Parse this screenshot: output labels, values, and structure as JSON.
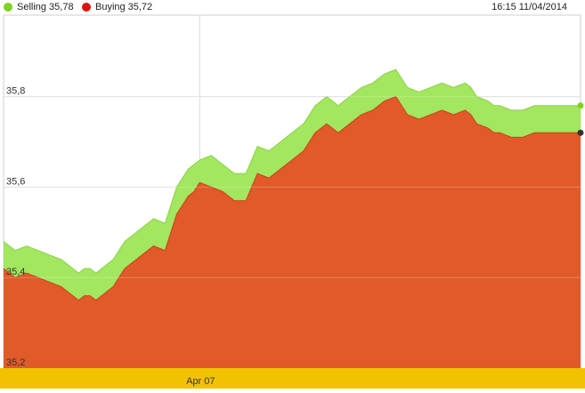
{
  "legend": {
    "selling": {
      "label": "Selling",
      "value": "35,78",
      "color": "#7ed321"
    },
    "buying": {
      "label": "Buying",
      "value": "35,72",
      "color": "#dd1111"
    }
  },
  "timestamp": "16:15 11/04/2014",
  "chart_data": {
    "type": "area",
    "title": "",
    "xlabel": "",
    "ylabel": "",
    "ylim": [
      35.2,
      35.98
    ],
    "y_ticks": [
      {
        "value": 35.2,
        "label": "35,2"
      },
      {
        "value": 35.4,
        "label": "35,4"
      },
      {
        "value": 35.6,
        "label": "35,6"
      },
      {
        "value": 35.8,
        "label": "35,8"
      }
    ],
    "x_ticks": [
      {
        "x": 34,
        "label": "Apr 07"
      }
    ],
    "grid": true,
    "colors": {
      "selling_fill": "#a3e65f",
      "buying_fill": "#e05a2a",
      "xaxis_band": "#f2c200",
      "grid": "#d9d9d9"
    },
    "x": [
      0,
      2,
      4,
      6,
      8,
      10,
      11,
      12,
      13,
      14,
      15,
      16,
      17,
      18,
      19,
      20,
      21,
      22,
      24,
      26,
      28,
      30,
      31,
      32,
      33,
      34,
      36,
      38,
      40,
      42,
      44,
      46,
      47,
      48,
      49,
      50,
      52,
      54,
      56,
      58,
      59,
      60,
      62,
      64,
      66,
      68,
      70,
      72,
      74,
      76,
      78,
      80,
      81,
      82,
      84,
      85,
      86,
      88,
      90,
      92,
      94,
      96,
      98,
      100
    ],
    "series": [
      {
        "name": "Selling",
        "values": [
          35.48,
          35.46,
          35.47,
          35.46,
          35.45,
          35.44,
          35.43,
          35.42,
          35.41,
          35.42,
          35.42,
          35.41,
          35.42,
          35.43,
          35.44,
          35.46,
          35.48,
          35.49,
          35.51,
          35.53,
          35.52,
          35.6,
          35.62,
          35.64,
          35.65,
          35.66,
          35.67,
          35.65,
          35.63,
          35.63,
          35.69,
          35.68,
          35.69,
          35.7,
          35.71,
          35.72,
          35.74,
          35.78,
          35.8,
          35.78,
          35.79,
          35.8,
          35.82,
          35.83,
          35.85,
          35.86,
          35.82,
          35.81,
          35.82,
          35.83,
          35.82,
          35.83,
          35.82,
          35.8,
          35.79,
          35.78,
          35.78,
          35.77,
          35.77,
          35.78,
          35.78,
          35.78,
          35.78,
          35.78
        ]
      },
      {
        "name": "Buying",
        "values": [
          35.42,
          35.4,
          35.41,
          35.4,
          35.39,
          35.38,
          35.37,
          35.36,
          35.35,
          35.36,
          35.36,
          35.35,
          35.36,
          35.37,
          35.38,
          35.4,
          35.42,
          35.43,
          35.45,
          35.47,
          35.46,
          35.54,
          35.56,
          35.58,
          35.59,
          35.61,
          35.6,
          35.59,
          35.57,
          35.57,
          35.63,
          35.62,
          35.63,
          35.64,
          35.65,
          35.66,
          35.68,
          35.72,
          35.74,
          35.72,
          35.73,
          35.74,
          35.76,
          35.77,
          35.79,
          35.8,
          35.76,
          35.75,
          35.76,
          35.77,
          35.76,
          35.77,
          35.76,
          35.74,
          35.73,
          35.72,
          35.72,
          35.71,
          35.71,
          35.72,
          35.72,
          35.72,
          35.72,
          35.72
        ]
      }
    ]
  }
}
